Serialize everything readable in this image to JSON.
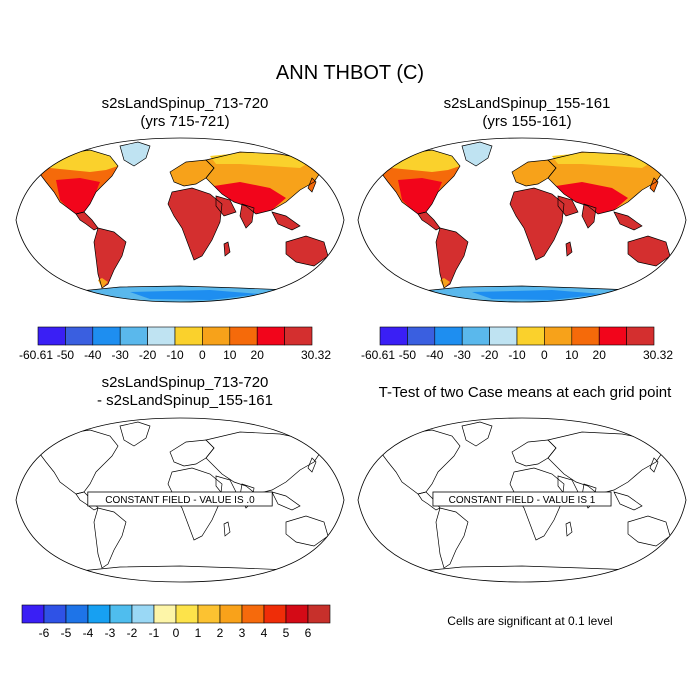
{
  "figure": {
    "title": "ANN THBOT (C)"
  },
  "panels": [
    {
      "title_line1": "s2sLandSpinup_713-720",
      "title_line2": "(yrs 715-721)",
      "kind": "field"
    },
    {
      "title_line1": "s2sLandSpinup_155-161",
      "title_line2": "(yrs 155-161)",
      "kind": "field"
    },
    {
      "title_line1": "s2sLandSpinup_713-720",
      "title_line2": "- s2sLandSpinup_155-161",
      "kind": "constant",
      "label": "CONSTANT FIELD - VALUE IS .0"
    },
    {
      "title_line1": "T-Test of two Case means at each grid point",
      "title_line2": "",
      "kind": "constant",
      "label": "CONSTANT FIELD - VALUE IS 1"
    }
  ],
  "colorbars": {
    "field": {
      "labels": [
        "-60.61",
        "-50",
        "-40",
        "-30",
        "-20",
        "-10",
        "0",
        "10",
        "20",
        "30.32"
      ],
      "colors": [
        "#3a1ff5",
        "#3a5fe0",
        "#1e8ef0",
        "#5ab8ec",
        "#bfe3f2",
        "#fad12c",
        "#f7a21a",
        "#f56a0a",
        "#f2051b",
        "#d42f2f"
      ]
    },
    "diff": {
      "labels": [
        "-6",
        "-5",
        "-4",
        "-3",
        "-2",
        "-1",
        "0",
        "1",
        "2",
        "3",
        "4",
        "5",
        "6"
      ],
      "colors": [
        "#3a1ff5",
        "#2f52e6",
        "#1e74e8",
        "#17a0f2",
        "#4fbdee",
        "#9ad8f5",
        "#fdf5a8",
        "#fde34a",
        "#fcc231",
        "#f9a21a",
        "#f66a0c",
        "#ef2d08",
        "#d40a16",
        "#c7302b"
      ]
    }
  },
  "note": "Cells are significant at 0.1 level",
  "map_colors": {
    "tropical": "#d42f2f",
    "warm": "#f2051b",
    "mild": "#f56a0a",
    "cool": "#f7a21a",
    "cold": "#fad12c",
    "polar": "#bfe3f2",
    "ice": "#5ab8ec",
    "deep_ice": "#1e8ef0",
    "coast": "#000000"
  }
}
